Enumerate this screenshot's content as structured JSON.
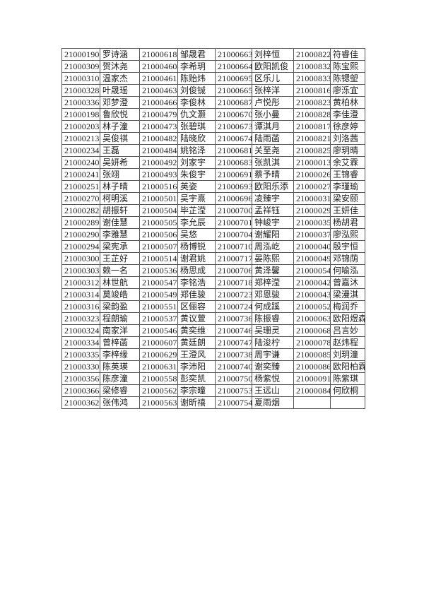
{
  "document": {
    "type": "student-roster-table",
    "text_color": "#1c1c1c",
    "border_color": "#575757",
    "page_background": "#ffffff"
  },
  "table": {
    "column_kinds": [
      "student-id",
      "student-name",
      "student-id",
      "student-name",
      "student-id",
      "student-name",
      "student-id",
      "student-name"
    ],
    "rows": [
      [
        "21000190",
        "罗诗涵",
        "21000618",
        "邹晟君",
        "21000663",
        "刘梓恒",
        "21000822",
        "符睿佳"
      ],
      [
        "21000309",
        "贺沐尧",
        "21000460",
        "李希玥",
        "21000664",
        "欧阳凯俊",
        "21000832",
        "陈宝熙"
      ],
      [
        "21000310",
        "温家杰",
        "21000461",
        "陈贻炜",
        "21000695",
        "区乐儿",
        "21000833",
        "陈锶塱"
      ],
      [
        "21000328",
        "叶晟瑶",
        "21000463",
        "刘俊铖",
        "21000665",
        "张梓洋",
        "21000816",
        "廖泺宜"
      ],
      [
        "21000336",
        "邓梦澄",
        "21000466",
        "李俊林",
        "21000687",
        "卢悦彤",
        "21000823",
        "黄柏林"
      ],
      [
        "21000198",
        "鲁欣悦",
        "21000479",
        "仇文灏",
        "21000670",
        "张小曼",
        "21000828",
        "李佳澄"
      ],
      [
        "21000203",
        "林子潼",
        "21000473",
        "张碧琪",
        "21000673",
        "谭淇月",
        "21000817",
        "徐彦婷"
      ],
      [
        "21000213",
        "吴俊祺",
        "21000482",
        "陆晓欣",
        "21000674",
        "陆雨菡",
        "21000821",
        "刘洛茜"
      ],
      [
        "21000234",
        "王磊",
        "21000484",
        "姚铭泽",
        "21000681",
        "关至尧",
        "21000825",
        "廖玥晴"
      ],
      [
        "21000240",
        "吴妍希",
        "21000492",
        "刘家宇",
        "21000683",
        "张凯淇",
        "21000013",
        "余艾霖"
      ],
      [
        "21000241",
        "张翊",
        "21000493",
        "朱俊宇",
        "21000691",
        "蔡予晴",
        "21000026",
        "王锦睿"
      ],
      [
        "21000251",
        "林子晴",
        "21000516",
        "英姿",
        "21000693",
        "欧阳乐添",
        "21000027",
        "李瑾瑜"
      ],
      [
        "21000270",
        "柯明溪",
        "21000501",
        "吴宇熹",
        "21000696",
        "凌臻宇",
        "21000031",
        "梁安颐"
      ],
      [
        "21000282",
        "胡振轩",
        "21000504",
        "毕芷滢",
        "21000700",
        "孟祥钰",
        "21000029",
        "王妍佳"
      ],
      [
        "21000289",
        "谢佳慧",
        "21000505",
        "李允辰",
        "21000701",
        "钟峻宇",
        "21000035",
        "杨胡君"
      ],
      [
        "21000290",
        "李雅慧",
        "21000506",
        "吴悠",
        "21000704",
        "谢耀阳",
        "21000037",
        "廖泓熙"
      ],
      [
        "21000294",
        "梁宪承",
        "21000507",
        "杨博锐",
        "21000710",
        "周泓屹",
        "21000040",
        "殷宇恒"
      ],
      [
        "21000300",
        "王芷好",
        "21000514",
        "谢君姚",
        "21000717",
        "晏陈熙",
        "21000049",
        "邓锦荫"
      ],
      [
        "21000303",
        "赖一名",
        "21000536",
        "杨思成",
        "21000706",
        "黄泽馨",
        "21000054",
        "何喻泓"
      ],
      [
        "21000312",
        "林世航",
        "21000547",
        "李铭浩",
        "21000718",
        "郑梓滢",
        "21000042",
        "曾嘉沐"
      ],
      [
        "21000314",
        "莫竣皓",
        "21000549",
        "郑佳骏",
        "21000723",
        "邓恩骏",
        "21000043",
        "梁漫淇"
      ],
      [
        "21000316",
        "梁韵盈",
        "21000551",
        "区俪容",
        "21000724",
        "何成蹊",
        "21000052",
        "梅润乔"
      ],
      [
        "21000323",
        "程朗瑜",
        "21000537",
        "黄议萱",
        "21000736",
        "陈振睿",
        "21000063",
        "欧阳煜森"
      ],
      [
        "21000324",
        "南家洋",
        "21000546",
        "黄奕维",
        "21000746",
        "吴珊灵",
        "21000068",
        "吕言妙"
      ],
      [
        "21000334",
        "曾梓菡",
        "21000607",
        "黄廷朗",
        "21000747",
        "陆浚柠",
        "21000078",
        "赵炜程"
      ],
      [
        "21000335",
        "李梓缘",
        "21000629",
        "王澄风",
        "21000738",
        "周宇谦",
        "21000085",
        "刘玥潼"
      ],
      [
        "21000330",
        "陈英瑛",
        "21000631",
        "李沛阳",
        "21000740",
        "谢奕臻",
        "21000086",
        "欧阳柏霖"
      ],
      [
        "21000356",
        "陈彦潼",
        "21000558",
        "彭奕凯",
        "21000750",
        "杨紫悦",
        "21000091",
        "陈紫琪"
      ],
      [
        "21000366",
        "梁修睿",
        "21000562",
        "李宗曈",
        "21000753",
        "王远山",
        "21000084",
        "何欣桐"
      ],
      [
        "21000362",
        "张伟鸿",
        "21000563",
        "谢昕禧",
        "21000754",
        "夏雨烟",
        "",
        ""
      ]
    ]
  }
}
